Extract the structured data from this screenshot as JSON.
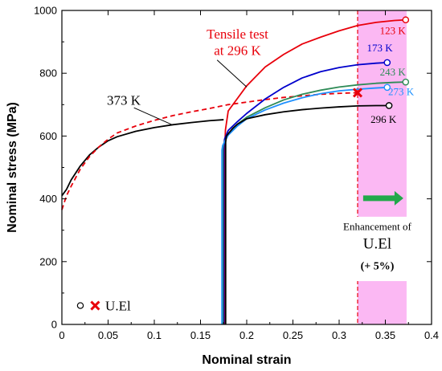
{
  "chart_data": {
    "type": "line",
    "xlabel": "Nominal strain",
    "ylabel": "Nominal stress (MPa)",
    "xlim": [
      0,
      0.4
    ],
    "ylim": [
      0,
      1000
    ],
    "xticks": [
      0,
      0.05,
      0.1,
      0.15,
      0.2,
      0.25,
      0.3,
      0.35,
      0.4
    ],
    "xtick_labels": [
      "0",
      "0.05",
      "0.1",
      "0.15",
      "0.2",
      "0.25",
      "0.3",
      "0.35",
      "0.4"
    ],
    "yticks": [
      0,
      200,
      400,
      600,
      800,
      1000
    ],
    "ytick_labels": [
      "0",
      "200",
      "400",
      "600",
      "800",
      "1000"
    ],
    "grid": false,
    "series": [
      {
        "name": "373 K",
        "color": "#000000",
        "style": "solid",
        "points": [
          [
            0,
            410
          ],
          [
            0.005,
            430
          ],
          [
            0.01,
            460
          ],
          [
            0.02,
            505
          ],
          [
            0.03,
            540
          ],
          [
            0.04,
            565
          ],
          [
            0.05,
            585
          ],
          [
            0.06,
            598
          ],
          [
            0.08,
            615
          ],
          [
            0.1,
            627
          ],
          [
            0.12,
            636
          ],
          [
            0.14,
            643
          ],
          [
            0.16,
            649
          ],
          [
            0.175,
            652
          ]
        ],
        "marker_end": "none"
      },
      {
        "name": "Tensile test at 296 K",
        "color": "#e8000b",
        "style": "dashed",
        "points": [
          [
            0,
            365
          ],
          [
            0.005,
            410
          ],
          [
            0.01,
            440
          ],
          [
            0.02,
            495
          ],
          [
            0.03,
            535
          ],
          [
            0.04,
            565
          ],
          [
            0.05,
            590
          ],
          [
            0.06,
            610
          ],
          [
            0.08,
            632
          ],
          [
            0.1,
            650
          ],
          [
            0.12,
            665
          ],
          [
            0.14,
            677
          ],
          [
            0.16,
            688
          ],
          [
            0.18,
            700
          ],
          [
            0.2,
            708
          ],
          [
            0.22,
            716
          ],
          [
            0.24,
            723
          ],
          [
            0.26,
            728
          ],
          [
            0.28,
            733
          ],
          [
            0.3,
            736
          ],
          [
            0.32,
            738
          ]
        ],
        "marker_end": "x"
      },
      {
        "name": "123 K",
        "color": "#e8000b",
        "style": "solid",
        "points": [
          [
            0.1762,
            0
          ],
          [
            0.1762,
            560
          ],
          [
            0.177,
            620
          ],
          [
            0.18,
            680
          ],
          [
            0.19,
            720
          ],
          [
            0.2,
            760
          ],
          [
            0.22,
            820
          ],
          [
            0.24,
            860
          ],
          [
            0.26,
            893
          ],
          [
            0.28,
            915
          ],
          [
            0.3,
            935
          ],
          [
            0.32,
            952
          ],
          [
            0.34,
            962
          ],
          [
            0.36,
            968
          ],
          [
            0.372,
            970
          ]
        ],
        "marker_end": "circle"
      },
      {
        "name": "173 K",
        "color": "#0000cc",
        "style": "solid",
        "points": [
          [
            0.1752,
            0
          ],
          [
            0.1752,
            560
          ],
          [
            0.176,
            590
          ],
          [
            0.18,
            618
          ],
          [
            0.19,
            646
          ],
          [
            0.2,
            672
          ],
          [
            0.22,
            718
          ],
          [
            0.24,
            755
          ],
          [
            0.26,
            785
          ],
          [
            0.28,
            805
          ],
          [
            0.3,
            818
          ],
          [
            0.32,
            827
          ],
          [
            0.34,
            832
          ],
          [
            0.352,
            834
          ]
        ],
        "marker_end": "circle"
      },
      {
        "name": "243 K",
        "color": "#2e8b57",
        "style": "solid",
        "points": [
          [
            0.1742,
            0
          ],
          [
            0.1742,
            560
          ],
          [
            0.175,
            575
          ],
          [
            0.18,
            608
          ],
          [
            0.19,
            638
          ],
          [
            0.2,
            660
          ],
          [
            0.22,
            690
          ],
          [
            0.24,
            715
          ],
          [
            0.26,
            733
          ],
          [
            0.28,
            746
          ],
          [
            0.3,
            756
          ],
          [
            0.32,
            763
          ],
          [
            0.34,
            768
          ],
          [
            0.36,
            771
          ],
          [
            0.372,
            772
          ]
        ],
        "marker_end": "circle"
      },
      {
        "name": "273 K",
        "color": "#1e90ff",
        "style": "solid",
        "points": [
          [
            0.1732,
            0
          ],
          [
            0.1732,
            555
          ],
          [
            0.174,
            570
          ],
          [
            0.18,
            603
          ],
          [
            0.19,
            632
          ],
          [
            0.2,
            655
          ],
          [
            0.22,
            683
          ],
          [
            0.24,
            705
          ],
          [
            0.26,
            722
          ],
          [
            0.28,
            735
          ],
          [
            0.3,
            744
          ],
          [
            0.32,
            749
          ],
          [
            0.34,
            753
          ],
          [
            0.352,
            755
          ]
        ],
        "marker_end": "circle"
      },
      {
        "name": "296 K",
        "color": "#000000",
        "style": "solid",
        "points": [
          [
            0.1772,
            0
          ],
          [
            0.1772,
            580
          ],
          [
            0.178,
            600
          ],
          [
            0.185,
            625
          ],
          [
            0.19,
            638
          ],
          [
            0.2,
            655
          ],
          [
            0.22,
            668
          ],
          [
            0.24,
            677
          ],
          [
            0.26,
            684
          ],
          [
            0.28,
            689
          ],
          [
            0.3,
            693
          ],
          [
            0.32,
            696
          ],
          [
            0.34,
            697
          ],
          [
            0.354,
            697
          ]
        ],
        "marker_end": "circle"
      }
    ],
    "highlight_band": {
      "x_from": 0.32,
      "x_to": 0.373,
      "color": "#fbb8f3"
    },
    "annotations": {
      "tensile_line1": "Tensile test",
      "tensile_line2": "at 296 K",
      "label_373": "373 K",
      "label_123": "123 K",
      "label_173": "173 K",
      "label_243": "243 K",
      "label_273": "273 K",
      "label_296": "296 K",
      "enh_line1": "Enhancement of",
      "enh_line2": "U.El",
      "enh_line3": "(+ 5%)",
      "legend_label": "U.El"
    }
  }
}
